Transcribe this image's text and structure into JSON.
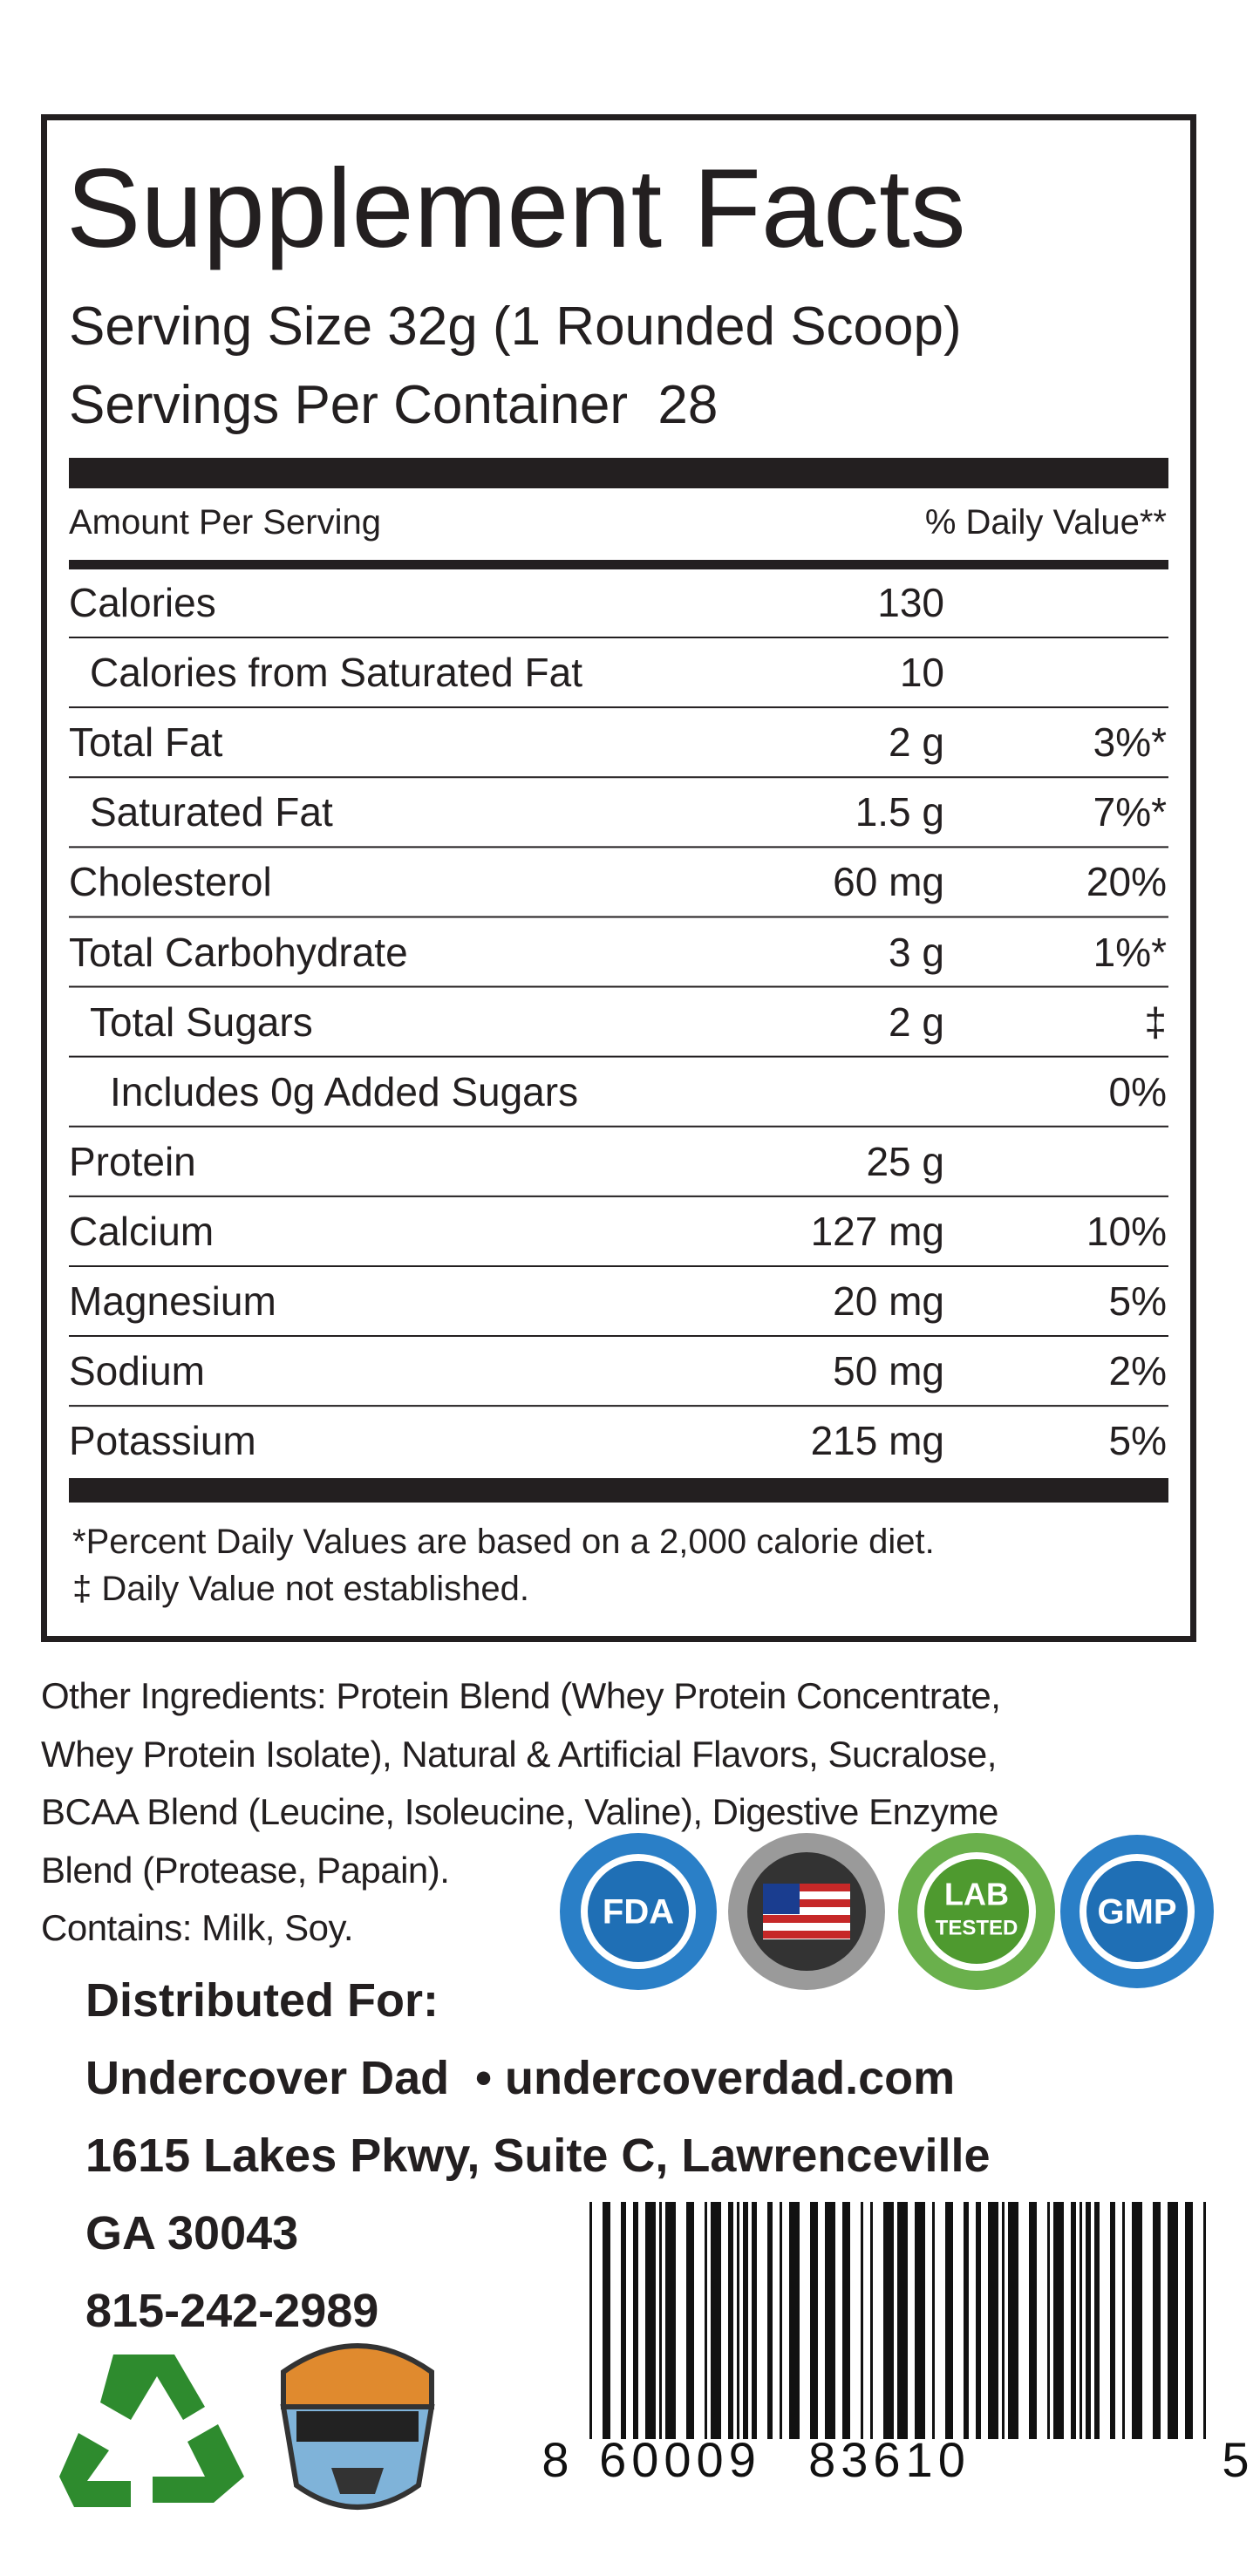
{
  "header": {
    "title": "Supplement Facts",
    "serving_size": "Serving Size 32g (1 Rounded Scoop)",
    "servings_per_container": "Servings Per Container  28"
  },
  "columns": {
    "amount_per_serving": "Amount Per Serving",
    "daily_value": "% Daily Value**"
  },
  "rows": [
    {
      "label": "Calories",
      "amount": "130",
      "level": 0
    },
    {
      "label": "Calories from Saturated Fat",
      "amount": "10",
      "level": 1
    },
    {
      "label": "Total Fat",
      "amount": "2 g",
      "dv": "3%*",
      "level": 0
    },
    {
      "label": "Saturated Fat",
      "amount": "1.5 g",
      "dv": "7%*",
      "level": 1
    },
    {
      "label": "Cholesterol",
      "amount": "60 mg",
      "dv": "20%",
      "level": 0
    },
    {
      "label": "Total Carbohydrate",
      "amount": "3 g",
      "dv": "1%*",
      "level": 0
    },
    {
      "label": "Total Sugars",
      "amount": "2 g",
      "dv": "‡",
      "level": 1
    },
    {
      "label": "Includes 0g Added Sugars",
      "dv": "0%",
      "level": 2
    },
    {
      "label": "Protein",
      "amount": "25 g",
      "level": 0
    },
    {
      "label": "Calcium",
      "amount": "127 mg",
      "dv": "10%",
      "level": 0
    },
    {
      "label": "Magnesium",
      "amount": "20 mg",
      "dv": "5%",
      "level": 0
    },
    {
      "label": "Sodium",
      "amount": "50 mg",
      "dv": "2%",
      "level": 0
    },
    {
      "label": "Potassium",
      "amount": "215 mg",
      "dv": "5%",
      "level": 0
    }
  ],
  "footnotes": [
    "*Percent Daily Values are based on a 2,000 calorie diet.",
    "‡ Daily Value not established."
  ],
  "other_ingredients": [
    "Other Ingredients: Protein Blend (Whey Protein Concentrate,",
    "Whey Protein Isolate), Natural & Artificial Flavors, Sucralose,",
    "BCAA Blend (Leucine, Isoleucine, Valine), Digestive Enzyme",
    "Blend (Protease, Papain).",
    "Contains: Milk, Soy."
  ],
  "distributor": [
    "Distributed For:",
    "Undercover Dad  • undercoverdad.com",
    "1615 Lakes Pkwy, Suite C, Lawrenceville",
    "GA 30043",
    "815-242-2989"
  ],
  "badges": [
    "FDA",
    "LAB",
    "TESTED",
    "GMP"
  ],
  "barcode": [
    "8",
    "60009",
    "83610",
    "5"
  ]
}
